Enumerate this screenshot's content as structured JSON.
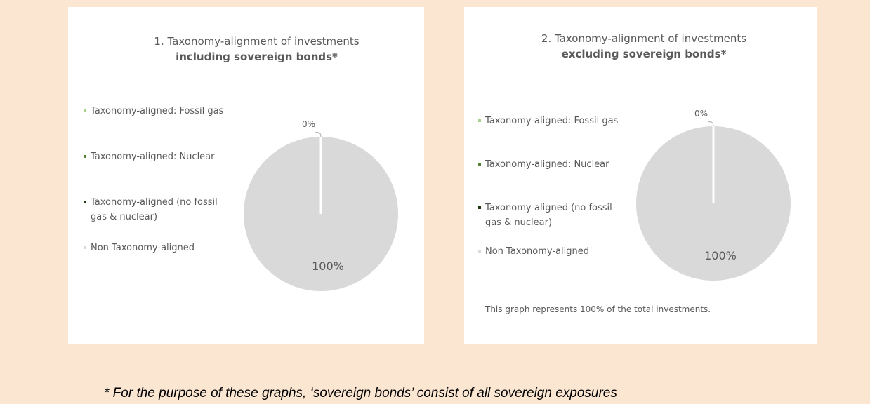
{
  "chart_data": [
    {
      "type": "pie",
      "title": "1. Taxonomy-alignment of investments",
      "subtitle": "including sovereign bonds*",
      "legend_position": "left",
      "slices": [
        {
          "label": "Taxonomy-aligned: Fossil gas",
          "value": 0,
          "color": "#a9d18e"
        },
        {
          "label": "Taxonomy-aligned: Nuclear",
          "value": 0,
          "color": "#548235"
        },
        {
          "label": "Taxonomy-aligned (no fossil gas & nuclear)",
          "value": 0,
          "color": "#1e3a12"
        },
        {
          "label": "Non Taxonomy-aligned",
          "value": 100,
          "color": "#d9d9d9"
        }
      ],
      "data_labels": [
        "0%",
        "100%"
      ]
    },
    {
      "type": "pie",
      "title": "2. Taxonomy-alignment of investments",
      "subtitle": "excluding sovereign bonds*",
      "legend_position": "left",
      "slices": [
        {
          "label": "Taxonomy-aligned: Fossil gas",
          "value": 0,
          "color": "#a9d18e"
        },
        {
          "label": "Taxonomy-aligned: Nuclear",
          "value": 0,
          "color": "#548235"
        },
        {
          "label": "Taxonomy-aligned (no fossil gas & nuclear)",
          "value": 0,
          "color": "#1e3a12"
        },
        {
          "label": "Non Taxonomy-aligned",
          "value": 100,
          "color": "#d9d9d9"
        }
      ],
      "data_labels": [
        "0%",
        "100%"
      ],
      "note": "This graph represents 100% of the total investments."
    }
  ],
  "footnote": "* For the purpose of these graphs, ‘sovereign bonds’ consist of all sovereign exposures"
}
